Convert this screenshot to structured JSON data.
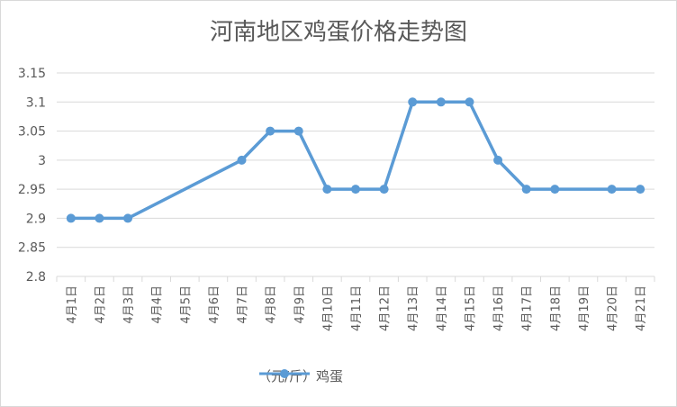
{
  "chart_data": {
    "type": "line",
    "title": "河南地区鸡蛋价格走势图",
    "categories": [
      "4月1日",
      "4月2日",
      "4月3日",
      "4月4日",
      "4月5日",
      "4月6日",
      "4月7日",
      "4月8日",
      "4月9日",
      "4月10日",
      "4月11日",
      "4月12日",
      "4月13日",
      "4月14日",
      "4月15日",
      "4月16日",
      "4月17日",
      "4月18日",
      "4月19日",
      "4月20日",
      "4月21日"
    ],
    "series": [
      {
        "name": "（元/斤）鸡蛋",
        "values": [
          2.9,
          2.9,
          2.9,
          null,
          null,
          null,
          3.0,
          3.05,
          3.05,
          2.95,
          2.95,
          2.95,
          3.1,
          3.1,
          3.1,
          3.0,
          2.95,
          2.95,
          null,
          2.95,
          2.95
        ]
      }
    ],
    "ylim": [
      2.8,
      3.15
    ],
    "yticks": [
      "2.8",
      "2.85",
      "2.9",
      "2.95",
      "3",
      "3.05",
      "3.1",
      "3.15"
    ],
    "gaps": "connect",
    "grid": true,
    "legend": "bottom",
    "color": "#5b9bd5"
  }
}
